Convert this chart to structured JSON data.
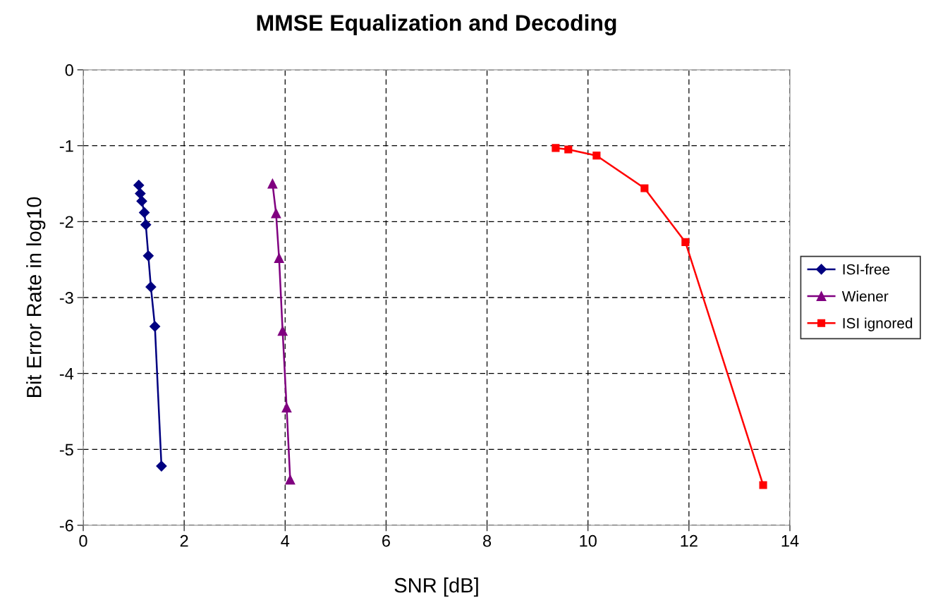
{
  "chart_data": {
    "type": "line",
    "title": "MMSE Equalization and Decoding",
    "xlabel": "SNR [dB]",
    "ylabel": "Bit Error Rate in log10",
    "xlim": [
      0,
      14
    ],
    "xticks": [
      0,
      2,
      4,
      6,
      8,
      10,
      12,
      14
    ],
    "ylim": [
      -6,
      0
    ],
    "yticks": [
      -6,
      -5,
      -4,
      -3,
      -2,
      -1,
      0
    ],
    "grid": true,
    "legend": "right",
    "line_style": "solid",
    "series": [
      {
        "name": "ISI-free",
        "color": "#000080",
        "marker": "diamond",
        "x": [
          1.1,
          1.13,
          1.16,
          1.21,
          1.24,
          1.29,
          1.34,
          1.42,
          1.55
        ],
        "values": [
          -1.52,
          -1.63,
          -1.73,
          -1.88,
          -2.04,
          -2.45,
          -2.86,
          -3.38,
          -5.22
        ]
      },
      {
        "name": "Wiener",
        "color": "#800080",
        "marker": "triangle",
        "x": [
          3.75,
          3.82,
          3.88,
          3.95,
          4.03,
          4.1
        ],
        "values": [
          -1.5,
          -1.89,
          -2.48,
          -3.44,
          -4.45,
          -5.4
        ]
      },
      {
        "name": "ISI ignored",
        "color": "#ff0000",
        "marker": "square",
        "x": [
          9.36,
          9.61,
          10.17,
          11.12,
          11.93,
          13.47
        ],
        "values": [
          -1.03,
          -1.05,
          -1.13,
          -1.56,
          -2.27,
          -5.47
        ]
      }
    ]
  }
}
